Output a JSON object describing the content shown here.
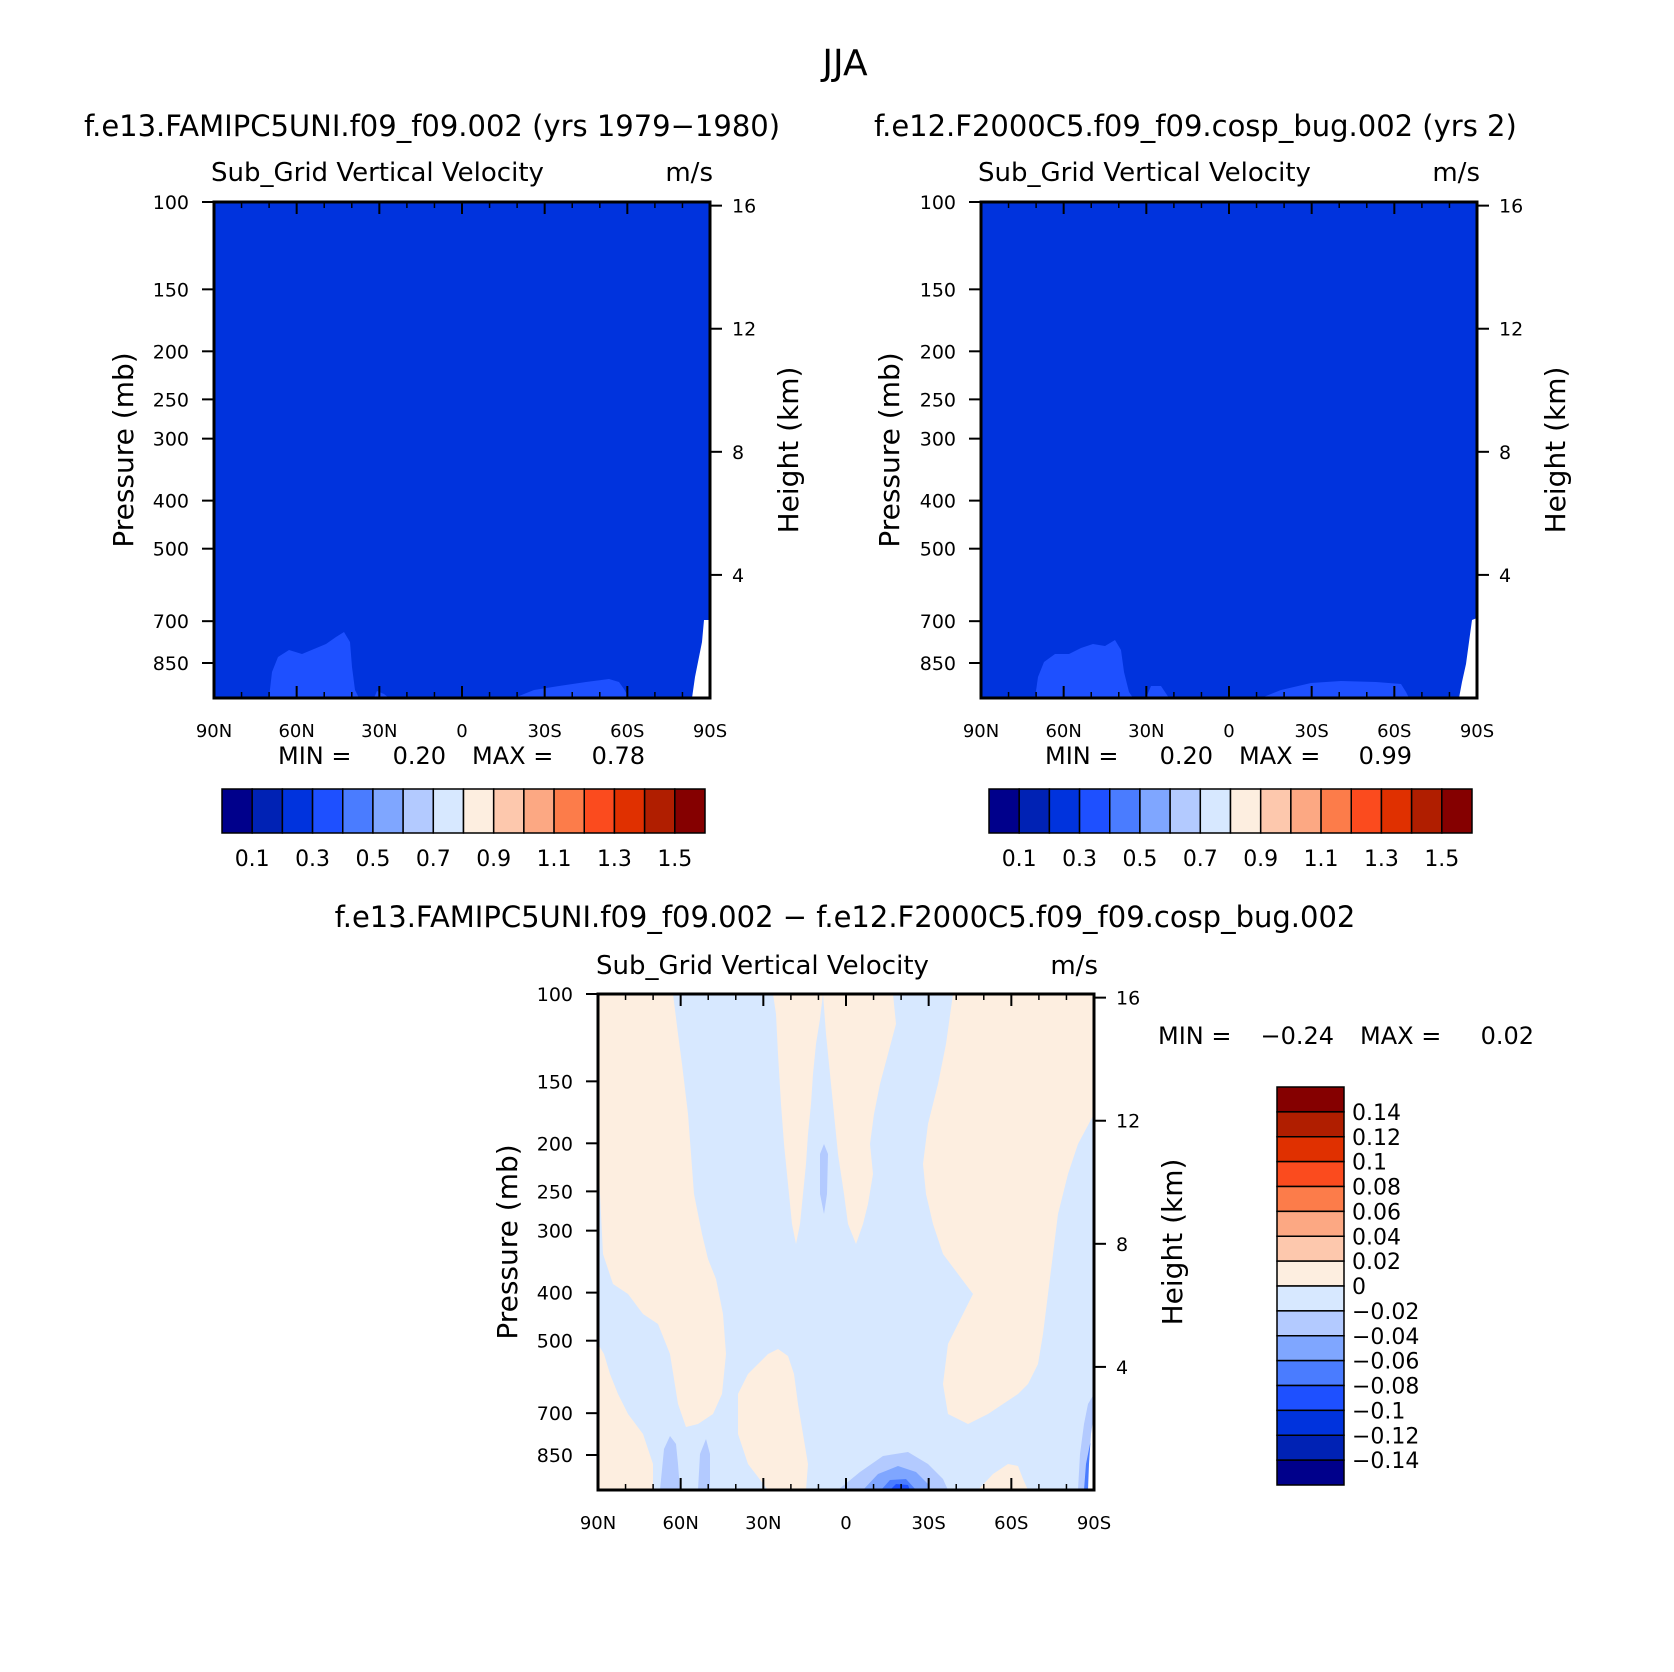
{
  "figure_title": "JJA",
  "chart_data": [
    {
      "type": "contour",
      "id": "panel_a",
      "case_title": "f.e13.FAMIPC5UNI.f09_f09.002 (yrs 1979−1980)",
      "variable": "Sub_Grid Vertical Velocity",
      "units": "m/s",
      "ylabel": "Pressure (mb)",
      "y2label": "Height (km)",
      "x_ticks": [
        "90N",
        "60N",
        "30N",
        "0",
        "30S",
        "60S",
        "90S"
      ],
      "y_ticks": [
        100,
        150,
        200,
        250,
        300,
        400,
        500,
        700,
        850
      ],
      "y2_ticks": [
        16,
        12,
        8,
        4
      ],
      "ylim": [
        1000,
        100
      ],
      "stats": {
        "min_label": "MIN =",
        "min": "0.20",
        "max_label": "MAX =",
        "max": "0.78"
      },
      "colorbar": {
        "orientation": "horizontal",
        "labels": [
          "0.1",
          "0.3",
          "0.5",
          "0.7",
          "0.9",
          "1.1",
          "1.3",
          "1.5"
        ],
        "colors": [
          "#00008b",
          "#0022b4",
          "#0033dd",
          "#1e50ff",
          "#4a7cff",
          "#7fa6ff",
          "#b3caff",
          "#d7e8ff",
          "#fdeee0",
          "#fdc8ad",
          "#fca883",
          "#fc7c4a",
          "#fb4b1e",
          "#e03000",
          "#b01e00",
          "#850000"
        ]
      },
      "field_description": "0.2–0.3 bin almost everywhere; 0.3–0.4 near surface 20N–75N and 30S–65S; missing near 90S surface"
    },
    {
      "type": "contour",
      "id": "panel_b",
      "case_title": "f.e12.F2000C5.f09_f09.cosp_bug.002 (yrs 2)",
      "variable": "Sub_Grid Vertical Velocity",
      "units": "m/s",
      "ylabel": "Pressure (mb)",
      "y2label": "Height (km)",
      "x_ticks": [
        "90N",
        "60N",
        "30N",
        "0",
        "30S",
        "60S",
        "90S"
      ],
      "y_ticks": [
        100,
        150,
        200,
        250,
        300,
        400,
        500,
        700,
        850
      ],
      "y2_ticks": [
        16,
        12,
        8,
        4
      ],
      "ylim": [
        1000,
        100
      ],
      "stats": {
        "min_label": "MIN =",
        "min": "0.20",
        "max_label": "MAX =",
        "max": "0.99"
      },
      "colorbar": {
        "orientation": "horizontal",
        "labels": [
          "0.1",
          "0.3",
          "0.5",
          "0.7",
          "0.9",
          "1.1",
          "1.3",
          "1.5"
        ],
        "colors": [
          "#00008b",
          "#0022b4",
          "#0033dd",
          "#1e50ff",
          "#4a7cff",
          "#7fa6ff",
          "#b3caff",
          "#d7e8ff",
          "#fdeee0",
          "#fdc8ad",
          "#fca883",
          "#fc7c4a",
          "#fb4b1e",
          "#e03000",
          "#b01e00",
          "#850000"
        ]
      }
    },
    {
      "type": "contour",
      "id": "panel_diff",
      "case_title": "f.e13.FAMIPC5UNI.f09_f09.002 − f.e12.F2000C5.f09_f09.cosp_bug.002",
      "variable": "Sub_Grid Vertical Velocity",
      "units": "m/s",
      "ylabel": "Pressure (mb)",
      "y2label": "Height (km)",
      "x_ticks": [
        "90N",
        "60N",
        "30N",
        "0",
        "30S",
        "60S",
        "90S"
      ],
      "y_ticks": [
        100,
        150,
        200,
        250,
        300,
        400,
        500,
        700,
        850
      ],
      "y2_ticks": [
        16,
        12,
        8,
        4
      ],
      "ylim": [
        1000,
        100
      ],
      "stats": {
        "min_label": "MIN =",
        "min": "−0.24",
        "max_label": "MAX =",
        "max": "0.02"
      },
      "colorbar": {
        "orientation": "vertical",
        "labels": [
          "0.14",
          "0.12",
          "0.1",
          "0.08",
          "0.06",
          "0.04",
          "0.02",
          "0",
          "−0.02",
          "−0.04",
          "−0.06",
          "−0.08",
          "−0.1",
          "−0.12",
          "−0.14"
        ],
        "colors": [
          "#850000",
          "#b01e00",
          "#e03000",
          "#fb4b1e",
          "#fc7c4a",
          "#fca883",
          "#fdc8ad",
          "#fdeee0",
          "#d7e8ff",
          "#b3caff",
          "#7fa6ff",
          "#4a7cff",
          "#1e50ff",
          "#0033dd",
          "#0022b4",
          "#00008b"
        ]
      },
      "field_description": "Mostly −0.02–0 (light blue) with 0–0.02 (light peach) bands; small −0.04 to −0.1 patches near surface at 30S and 90S"
    }
  ]
}
